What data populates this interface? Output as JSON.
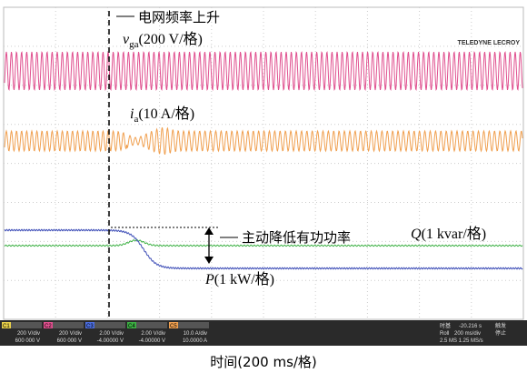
{
  "annotations": {
    "grid_event": "电网频率上升",
    "power_reduction": "主动降低有功功率"
  },
  "labels": {
    "vga": {
      "symbol": "v",
      "subscript": "ga",
      "scale": "(200 V/格)"
    },
    "ia": {
      "symbol": "i",
      "subscript": "a",
      "scale": "(10 A/格)"
    },
    "q": {
      "symbol": "Q",
      "scale": "(1 kvar/格)"
    },
    "p": {
      "symbol": "P",
      "scale": "(1 kW/格)"
    }
  },
  "brand": "TELEDYNE LECROY",
  "channels": [
    {
      "name": "C1",
      "scale": "200 V/div",
      "offset": "600 000 V"
    },
    {
      "name": "C2",
      "scale": "200 V/div",
      "offset": "600 000 V"
    },
    {
      "name": "C3",
      "scale": "2.00 V/div",
      "offset": "-4.00000 V"
    },
    {
      "name": "C4",
      "scale": "2.00 V/div",
      "offset": "-4.00000 V"
    },
    {
      "name": "C5",
      "scale": "10.0 A/div",
      "offset": "10.0000 A"
    }
  ],
  "timebase": {
    "title": "时基",
    "delay": "-20.216 s",
    "mode": "Roll",
    "rate": "200 ms/div",
    "samples": "2.5 MS 1.25 MS/s",
    "trigger": "触发",
    "state": "停止"
  },
  "caption": "时间(200 ms/格)"
}
